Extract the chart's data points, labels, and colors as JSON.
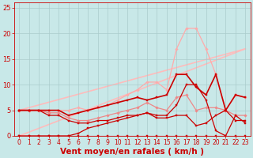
{
  "background_color": "#c8e8e8",
  "grid_color": "#aacccc",
  "xlabel": "Vent moyen/en rafales ( km/h )",
  "xlabel_color": "#cc0000",
  "xlabel_fontsize": 7.5,
  "tick_color": "#cc0000",
  "xlim": [
    -0.5,
    23.5
  ],
  "ylim": [
    0,
    26
  ],
  "yticks": [
    0,
    5,
    10,
    15,
    20,
    25
  ],
  "xticks": [
    0,
    1,
    2,
    3,
    4,
    5,
    6,
    7,
    8,
    9,
    10,
    11,
    12,
    13,
    14,
    15,
    16,
    17,
    18,
    19,
    20,
    21,
    22,
    23
  ],
  "lines": [
    {
      "x": [
        0,
        1,
        2,
        3,
        4,
        5,
        6,
        7,
        8,
        9,
        10,
        11,
        12,
        13,
        14,
        15,
        16,
        17,
        18,
        19,
        20,
        21,
        22,
        23
      ],
      "y": [
        0,
        0,
        0,
        0,
        0,
        0,
        0,
        0,
        0,
        0,
        0,
        0,
        0,
        0,
        0,
        0,
        0,
        0,
        0,
        0,
        0,
        0,
        0,
        0
      ],
      "color": "#cc0000",
      "lw": 0.8,
      "marker": "s",
      "ms": 1.8,
      "zorder": 5
    },
    {
      "x": [
        0,
        1,
        2,
        3,
        4,
        5,
        6,
        7,
        8,
        9,
        10,
        11,
        12,
        13,
        14,
        15,
        16,
        17,
        18,
        19,
        20,
        21,
        22,
        23
      ],
      "y": [
        0,
        0,
        0,
        0,
        0,
        0,
        0.5,
        1.5,
        2,
        2.5,
        3,
        3.5,
        4,
        4.5,
        4,
        4,
        6,
        10,
        10,
        7,
        1,
        0,
        4,
        2.5
      ],
      "color": "#cc0000",
      "lw": 0.9,
      "marker": "s",
      "ms": 1.8,
      "zorder": 5
    },
    {
      "x": [
        0,
        1,
        2,
        3,
        4,
        5,
        6,
        7,
        8,
        9,
        10,
        11,
        12,
        13,
        14,
        15,
        16,
        17,
        18,
        19,
        20,
        21,
        22,
        23
      ],
      "y": [
        5,
        5,
        5,
        4,
        4,
        3,
        2.5,
        2.5,
        3,
        3,
        3.5,
        4,
        4,
        4.5,
        3.5,
        3.5,
        4,
        4,
        2,
        2.5,
        4,
        5,
        3,
        3
      ],
      "color": "#cc0000",
      "lw": 0.9,
      "marker": "s",
      "ms": 1.8,
      "zorder": 4
    },
    {
      "x": [
        0,
        1,
        2,
        3,
        4,
        5,
        6,
        7,
        8,
        9,
        10,
        11,
        12,
        13,
        14,
        15,
        16,
        17,
        18,
        19,
        20,
        21,
        22,
        23
      ],
      "y": [
        5,
        5,
        5,
        5,
        5,
        4,
        4.5,
        5,
        5.5,
        6,
        6.5,
        7,
        7.5,
        7,
        7.5,
        8,
        12,
        12,
        9.5,
        8,
        12,
        5,
        8,
        7.5
      ],
      "color": "#cc0000",
      "lw": 1.2,
      "marker": "s",
      "ms": 1.8,
      "zorder": 5
    },
    {
      "x": [
        0,
        1,
        2,
        3,
        4,
        5,
        6,
        7,
        8,
        9,
        10,
        11,
        12,
        13,
        14,
        15,
        16,
        17,
        18,
        19,
        20,
        21,
        22,
        23
      ],
      "y": [
        5,
        5,
        5,
        4.5,
        4.5,
        3.5,
        3,
        3,
        3.5,
        4,
        4.5,
        5,
        5.5,
        6.5,
        5.5,
        5,
        7.5,
        8,
        5,
        5.5,
        5.5,
        5,
        4,
        4
      ],
      "color": "#ee8888",
      "lw": 0.9,
      "marker": "D",
      "ms": 1.8,
      "zorder": 3
    },
    {
      "x": [
        0,
        1,
        2,
        3,
        4,
        5,
        6,
        7,
        8,
        9,
        10,
        11,
        12,
        13,
        14,
        15,
        16,
        17,
        18,
        19,
        20,
        21,
        22,
        23
      ],
      "y": [
        5,
        5,
        5,
        5,
        5,
        5,
        5.5,
        5,
        5.5,
        6,
        7,
        8,
        9,
        10.5,
        10.5,
        9,
        17,
        21,
        21,
        17,
        12,
        5,
        8,
        7.5
      ],
      "color": "#ffaaaa",
      "lw": 0.9,
      "marker": "D",
      "ms": 1.8,
      "zorder": 2
    },
    {
      "x": [
        0,
        23
      ],
      "y": [
        0,
        17
      ],
      "color": "#ffbbbb",
      "lw": 1.2,
      "marker": null,
      "ms": 0,
      "zorder": 1
    },
    {
      "x": [
        0,
        23
      ],
      "y": [
        5,
        17
      ],
      "color": "#ffbbbb",
      "lw": 1.2,
      "marker": null,
      "ms": 0,
      "zorder": 1
    }
  ]
}
